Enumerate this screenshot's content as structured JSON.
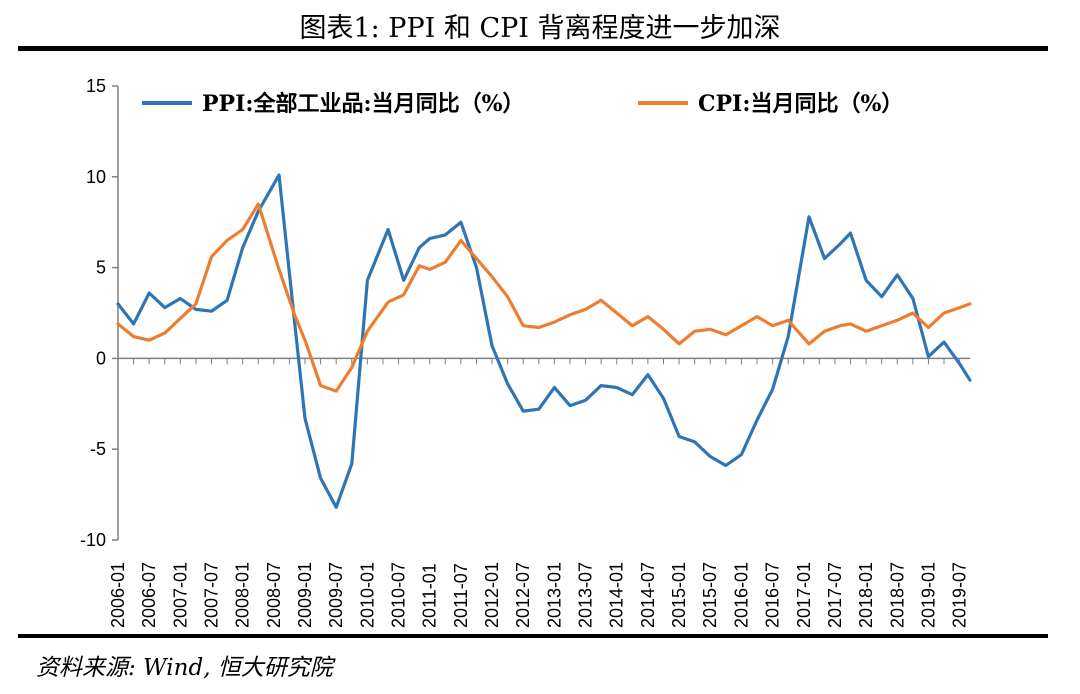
{
  "header": {
    "title": "图表1: PPI 和 CPI 背离程度进一步加深"
  },
  "footer": {
    "source": "资料来源: Wind, 恒大研究院"
  },
  "chart_data": {
    "type": "line",
    "title": "图表1: PPI 和 CPI 背离程度进一步加深",
    "xlabel": "",
    "ylabel": "",
    "ylim": [
      -10,
      15
    ],
    "yticks": [
      15,
      10,
      5,
      0,
      -5,
      -10
    ],
    "xticks": [
      "2006-01",
      "2006-07",
      "2007-01",
      "2007-07",
      "2008-01",
      "2008-07",
      "2009-01",
      "2009-07",
      "2010-01",
      "2010-07",
      "2011-01",
      "2011-07",
      "2012-01",
      "2012-07",
      "2013-01",
      "2013-07",
      "2014-01",
      "2014-07",
      "2015-01",
      "2015-07",
      "2016-01",
      "2016-07",
      "2017-01",
      "2017-07",
      "2018-01",
      "2018-07",
      "2019-01",
      "2019-07"
    ],
    "grid": false,
    "legend_position": "top",
    "series": [
      {
        "name": "PPI:全部工业品:当月同比（%）",
        "color": "#2E75B6",
        "x": [
          "2006-01",
          "2006-04",
          "2006-07",
          "2006-10",
          "2007-01",
          "2007-04",
          "2007-07",
          "2007-10",
          "2008-01",
          "2008-04",
          "2008-08",
          "2008-11",
          "2009-01",
          "2009-04",
          "2009-07",
          "2009-10",
          "2010-01",
          "2010-05",
          "2010-08",
          "2010-11",
          "2011-01",
          "2011-04",
          "2011-07",
          "2011-10",
          "2012-01",
          "2012-04",
          "2012-07",
          "2012-10",
          "2013-01",
          "2013-04",
          "2013-07",
          "2013-10",
          "2014-01",
          "2014-04",
          "2014-07",
          "2014-10",
          "2015-01",
          "2015-04",
          "2015-07",
          "2015-10",
          "2016-01",
          "2016-04",
          "2016-07",
          "2016-10",
          "2017-02",
          "2017-05",
          "2017-08",
          "2017-10",
          "2018-01",
          "2018-04",
          "2018-07",
          "2018-10",
          "2019-01",
          "2019-04",
          "2019-07",
          "2019-09"
        ],
        "values": [
          3.0,
          1.9,
          3.6,
          2.8,
          3.3,
          2.7,
          2.6,
          3.2,
          6.1,
          8.1,
          10.1,
          2.0,
          -3.3,
          -6.6,
          -8.2,
          -5.8,
          4.3,
          7.1,
          4.3,
          6.1,
          6.6,
          6.8,
          7.5,
          5.0,
          0.7,
          -1.4,
          -2.9,
          -2.8,
          -1.6,
          -2.6,
          -2.3,
          -1.5,
          -1.6,
          -2.0,
          -0.9,
          -2.2,
          -4.3,
          -4.6,
          -5.4,
          -5.9,
          -5.3,
          -3.4,
          -1.7,
          1.2,
          7.8,
          5.5,
          6.3,
          6.9,
          4.3,
          3.4,
          4.6,
          3.3,
          0.1,
          0.9,
          -0.3,
          -1.2
        ]
      },
      {
        "name": "CPI:当月同比（%）",
        "color": "#ED7D31",
        "x": [
          "2006-01",
          "2006-04",
          "2006-07",
          "2006-10",
          "2007-01",
          "2007-04",
          "2007-07",
          "2007-10",
          "2008-01",
          "2008-04",
          "2008-08",
          "2008-11",
          "2009-01",
          "2009-04",
          "2009-07",
          "2009-10",
          "2010-01",
          "2010-05",
          "2010-08",
          "2010-11",
          "2011-01",
          "2011-04",
          "2011-07",
          "2011-10",
          "2012-01",
          "2012-04",
          "2012-07",
          "2012-10",
          "2013-01",
          "2013-04",
          "2013-07",
          "2013-10",
          "2014-01",
          "2014-04",
          "2014-07",
          "2014-10",
          "2015-01",
          "2015-04",
          "2015-07",
          "2015-10",
          "2016-01",
          "2016-04",
          "2016-07",
          "2016-10",
          "2017-02",
          "2017-05",
          "2017-08",
          "2017-10",
          "2018-01",
          "2018-04",
          "2018-07",
          "2018-10",
          "2019-01",
          "2019-04",
          "2019-07",
          "2019-09"
        ],
        "values": [
          1.9,
          1.2,
          1.0,
          1.4,
          2.2,
          3.0,
          5.6,
          6.5,
          7.1,
          8.5,
          4.9,
          2.4,
          1.0,
          -1.5,
          -1.8,
          -0.5,
          1.5,
          3.1,
          3.5,
          5.1,
          4.9,
          5.3,
          6.5,
          5.5,
          4.5,
          3.4,
          1.8,
          1.7,
          2.0,
          2.4,
          2.7,
          3.2,
          2.5,
          1.8,
          2.3,
          1.6,
          0.8,
          1.5,
          1.6,
          1.3,
          1.8,
          2.3,
          1.8,
          2.1,
          0.8,
          1.5,
          1.8,
          1.9,
          1.5,
          1.8,
          2.1,
          2.5,
          1.7,
          2.5,
          2.8,
          3.0
        ]
      }
    ]
  }
}
